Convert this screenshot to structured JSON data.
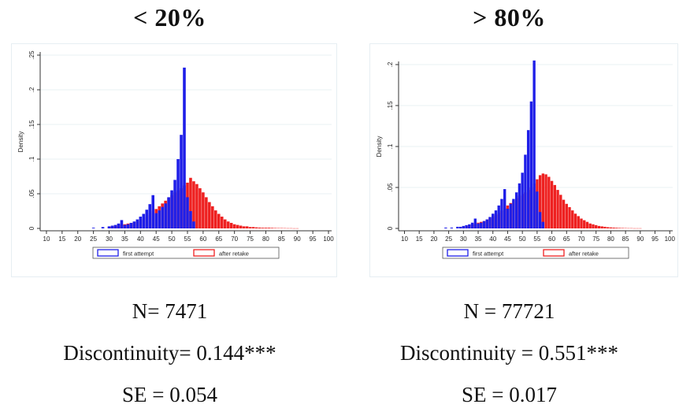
{
  "chart_data": [
    {
      "type": "bar",
      "title": "< 20%",
      "ylabel": "Density",
      "xlabel": "",
      "xlim": [
        8,
        101
      ],
      "ylim": [
        0,
        0.25
      ],
      "xticks": [
        10,
        15,
        20,
        25,
        30,
        35,
        40,
        45,
        50,
        55,
        60,
        65,
        70,
        75,
        80,
        85,
        90,
        95,
        100
      ],
      "xtick_labels": [
        "10",
        "15",
        "20",
        "25",
        "30",
        "35",
        "40",
        "45",
        "50",
        "55",
        "60",
        "65",
        "70",
        "75",
        "80",
        "85",
        "90",
        "95",
        "100"
      ],
      "yticks": [
        0,
        0.05,
        0.1,
        0.15,
        0.2,
        0.25
      ],
      "ytick_labels": [
        "0",
        ".05",
        ".1",
        ".15",
        ".2",
        ".25"
      ],
      "grid": true,
      "legend_position": "bottom",
      "series": [
        {
          "name": "first attempt",
          "color": "#1e1ee8",
          "x": [
            25,
            28,
            30,
            31,
            32,
            33,
            34,
            35,
            36,
            37,
            38,
            39,
            40,
            41,
            42,
            43,
            44,
            45,
            46,
            47,
            48,
            49,
            50,
            51,
            52,
            53,
            54,
            55,
            56,
            57
          ],
          "values": [
            0.001,
            0.002,
            0.003,
            0.004,
            0.005,
            0.007,
            0.012,
            0.005,
            0.006,
            0.008,
            0.01,
            0.013,
            0.017,
            0.021,
            0.027,
            0.035,
            0.048,
            0.022,
            0.026,
            0.031,
            0.036,
            0.045,
            0.055,
            0.07,
            0.1,
            0.135,
            0.232,
            0.045,
            0.025,
            0.01
          ]
        },
        {
          "name": "after retake",
          "color": "#ee2020",
          "x": [
            30,
            31,
            32,
            33,
            34,
            35,
            36,
            37,
            38,
            39,
            40,
            41,
            42,
            43,
            44,
            45,
            46,
            47,
            48,
            49,
            50,
            51,
            52,
            53,
            54,
            55,
            56,
            57,
            58,
            59,
            60,
            61,
            62,
            63,
            64,
            65,
            66,
            67,
            68,
            69,
            70,
            71,
            72,
            73,
            74,
            75,
            76,
            77,
            78,
            79,
            80,
            81,
            82,
            83,
            84,
            85,
            86,
            87,
            88,
            89,
            90
          ],
          "values": [
            0.002,
            0.003,
            0.004,
            0.005,
            0.006,
            0.006,
            0.007,
            0.008,
            0.009,
            0.011,
            0.013,
            0.016,
            0.019,
            0.022,
            0.025,
            0.028,
            0.032,
            0.036,
            0.04,
            0.044,
            0.048,
            0.052,
            0.055,
            0.058,
            0.062,
            0.066,
            0.073,
            0.068,
            0.064,
            0.058,
            0.052,
            0.045,
            0.038,
            0.032,
            0.026,
            0.021,
            0.017,
            0.013,
            0.01,
            0.008,
            0.006,
            0.005,
            0.004,
            0.003,
            0.003,
            0.002,
            0.002,
            0.0015,
            0.0012,
            0.001,
            0.001,
            0.001,
            0.0008,
            0.0006,
            0.0005,
            0.0005,
            0.0004,
            0.0003,
            0.0003,
            0.0002,
            0.0002
          ]
        }
      ]
    },
    {
      "type": "bar",
      "title": "> 80%",
      "ylabel": "Density",
      "xlabel": "",
      "xlim": [
        8,
        101
      ],
      "ylim": [
        0,
        0.2
      ],
      "xticks": [
        10,
        15,
        20,
        25,
        30,
        35,
        40,
        45,
        50,
        55,
        60,
        65,
        70,
        75,
        80,
        85,
        90,
        95,
        100
      ],
      "xtick_labels": [
        "10",
        "15",
        "20",
        "25",
        "30",
        "35",
        "40",
        "45",
        "50",
        "55",
        "60",
        "65",
        "70",
        "75",
        "80",
        "85",
        "90",
        "95",
        "100"
      ],
      "yticks": [
        0,
        0.05,
        0.1,
        0.15,
        0.2
      ],
      "ytick_labels": [
        "0",
        ".05",
        ".1",
        ".15",
        ".2"
      ],
      "grid": true,
      "legend_position": "bottom",
      "series": [
        {
          "name": "first attempt",
          "color": "#1e1ee8",
          "x": [
            24,
            26,
            28,
            29,
            30,
            31,
            32,
            33,
            34,
            35,
            36,
            37,
            38,
            39,
            40,
            41,
            42,
            43,
            44,
            45,
            46,
            47,
            48,
            49,
            50,
            51,
            52,
            53,
            54,
            55,
            56,
            57
          ],
          "values": [
            0.001,
            0.001,
            0.002,
            0.002,
            0.003,
            0.004,
            0.005,
            0.007,
            0.012,
            0.006,
            0.007,
            0.009,
            0.011,
            0.014,
            0.018,
            0.022,
            0.028,
            0.036,
            0.048,
            0.024,
            0.03,
            0.036,
            0.044,
            0.055,
            0.068,
            0.09,
            0.12,
            0.155,
            0.205,
            0.045,
            0.02,
            0.008
          ]
        },
        {
          "name": "after retake",
          "color": "#ee2020",
          "x": [
            30,
            31,
            32,
            33,
            34,
            35,
            36,
            37,
            38,
            39,
            40,
            41,
            42,
            43,
            44,
            45,
            46,
            47,
            48,
            49,
            50,
            51,
            52,
            53,
            54,
            55,
            56,
            57,
            58,
            59,
            60,
            61,
            62,
            63,
            64,
            65,
            66,
            67,
            68,
            69,
            70,
            71,
            72,
            73,
            74,
            75,
            76,
            77,
            78,
            79,
            80,
            81,
            82,
            83,
            84,
            85,
            86,
            87,
            88,
            89,
            90
          ],
          "values": [
            0.002,
            0.003,
            0.004,
            0.005,
            0.006,
            0.007,
            0.008,
            0.009,
            0.011,
            0.013,
            0.015,
            0.017,
            0.019,
            0.022,
            0.025,
            0.028,
            0.031,
            0.034,
            0.037,
            0.04,
            0.042,
            0.044,
            0.047,
            0.05,
            0.055,
            0.06,
            0.065,
            0.067,
            0.066,
            0.063,
            0.058,
            0.053,
            0.047,
            0.041,
            0.035,
            0.03,
            0.026,
            0.022,
            0.018,
            0.015,
            0.012,
            0.01,
            0.008,
            0.006,
            0.005,
            0.004,
            0.003,
            0.0025,
            0.002,
            0.0015,
            0.0012,
            0.001,
            0.0008,
            0.0006,
            0.0005,
            0.0004,
            0.0003,
            0.0003,
            0.0002,
            0.0002,
            0.0002
          ]
        }
      ]
    }
  ],
  "stats": [
    {
      "n": "N= 7471",
      "discontinuity": "Discontinuity= 0.144***",
      "se": "SE = 0.054"
    },
    {
      "n": "N = 77721",
      "discontinuity": "Discontinuity = 0.551***",
      "se": "SE = 0.017"
    }
  ]
}
